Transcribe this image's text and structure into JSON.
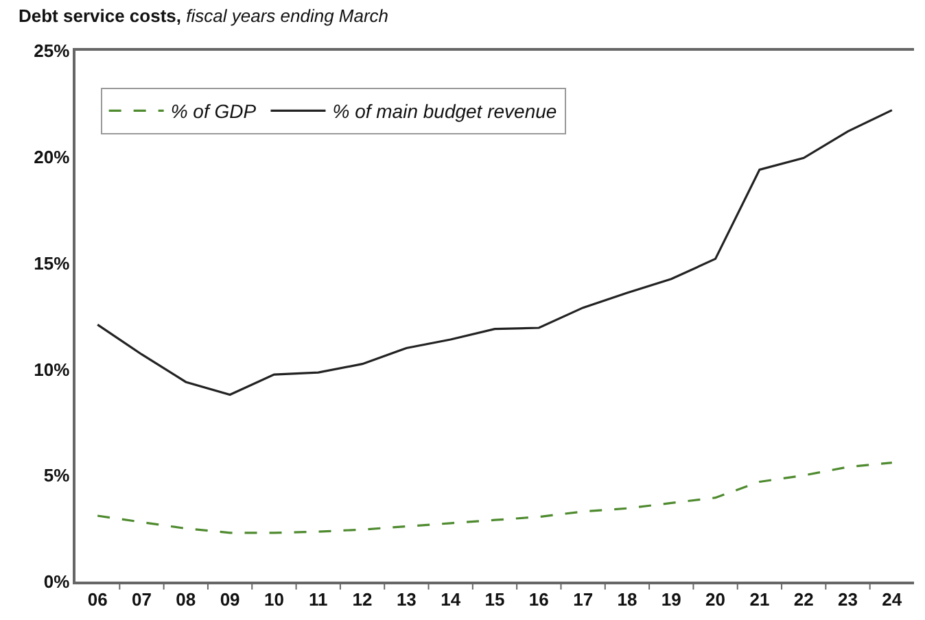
{
  "chart_data": {
    "type": "line",
    "title": "Debt service costs,",
    "subtitle": "fiscal years ending March",
    "categories": [
      "06",
      "07",
      "08",
      "09",
      "10",
      "11",
      "12",
      "13",
      "14",
      "15",
      "16",
      "17",
      "18",
      "19",
      "20",
      "21",
      "22",
      "23",
      "24"
    ],
    "series": [
      {
        "name": "% of GDP",
        "color": "#4e8a2e",
        "line_style": "dashed",
        "values": [
          3.1,
          2.8,
          2.5,
          2.3,
          2.3,
          2.35,
          2.45,
          2.6,
          2.75,
          2.9,
          3.05,
          3.3,
          3.45,
          3.7,
          3.95,
          4.7,
          5.0,
          5.4,
          5.6
        ]
      },
      {
        "name": "% of main budget revenue",
        "color": "#222222",
        "line_style": "solid",
        "values": [
          12.1,
          10.7,
          9.4,
          8.8,
          9.75,
          9.85,
          10.25,
          11.0,
          11.4,
          11.9,
          11.95,
          12.9,
          13.6,
          14.25,
          15.2,
          19.4,
          19.95,
          21.2,
          22.2
        ]
      }
    ],
    "ylim": [
      0,
      25
    ],
    "yticks": [
      {
        "value": 0,
        "label": "0%"
      },
      {
        "value": 5,
        "label": "5%"
      },
      {
        "value": 10,
        "label": "10%"
      },
      {
        "value": 15,
        "label": "15%"
      },
      {
        "value": 20,
        "label": "20%"
      },
      {
        "value": 25,
        "label": "25%"
      }
    ],
    "legend": "top left",
    "marker": "none"
  }
}
